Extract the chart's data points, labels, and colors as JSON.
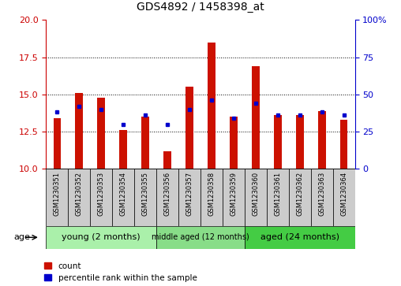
{
  "title": "GDS4892 / 1458398_at",
  "samples": [
    "GSM1230351",
    "GSM1230352",
    "GSM1230353",
    "GSM1230354",
    "GSM1230355",
    "GSM1230356",
    "GSM1230357",
    "GSM1230358",
    "GSM1230359",
    "GSM1230360",
    "GSM1230361",
    "GSM1230362",
    "GSM1230363",
    "GSM1230364"
  ],
  "count_values": [
    13.4,
    15.1,
    14.8,
    12.6,
    13.5,
    11.2,
    15.5,
    18.5,
    13.5,
    16.9,
    13.6,
    13.6,
    13.9,
    13.3
  ],
  "percentile_values": [
    38,
    42,
    40,
    30,
    36,
    30,
    40,
    46,
    34,
    44,
    36,
    36,
    38,
    36
  ],
  "y_min": 10,
  "y_max": 20,
  "y_ticks": [
    10,
    12.5,
    15,
    17.5,
    20
  ],
  "y2_ticks": [
    0,
    25,
    50,
    75,
    100
  ],
  "groups": [
    {
      "label": "young (2 months)",
      "start": 0,
      "end": 5,
      "color": "#aaf0aa"
    },
    {
      "label": "middle aged (12 months)",
      "start": 5,
      "end": 9,
      "color": "#88dd88"
    },
    {
      "label": "aged (24 months)",
      "start": 9,
      "end": 14,
      "color": "#44cc44"
    }
  ],
  "bar_color": "#cc1100",
  "dot_color": "#0000cc",
  "bar_width": 0.35,
  "left_axis_color": "#cc0000",
  "right_axis_color": "#0000cc",
  "cell_color": "#cccccc",
  "age_label": "age"
}
